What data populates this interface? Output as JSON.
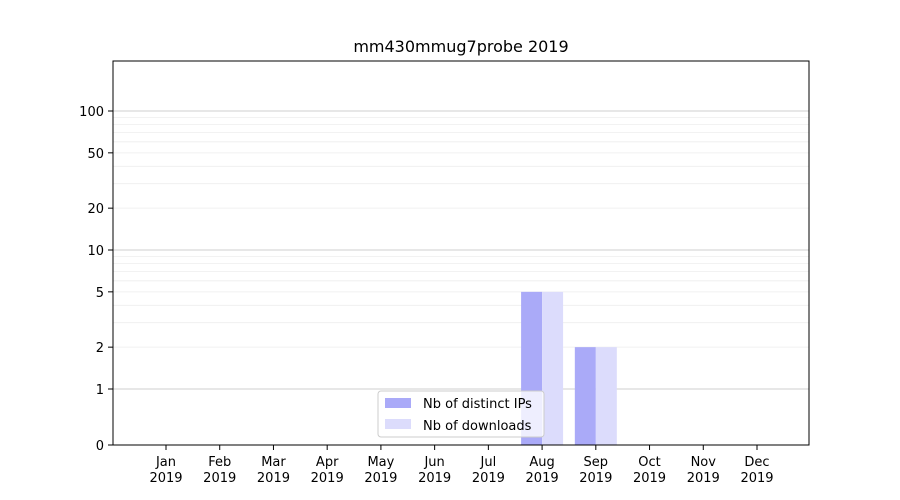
{
  "chart_data": {
    "type": "bar",
    "title": "mm430mmug7probe 2019",
    "xlabel": "",
    "ylabel": "",
    "y_scale": "symlog",
    "ylim": [
      0,
      110
    ],
    "y_ticks": [
      0,
      1,
      2,
      5,
      10,
      20,
      50,
      100
    ],
    "grid": true,
    "legend_position": "lower-center",
    "categories": [
      [
        "Jan",
        "2019"
      ],
      [
        "Feb",
        "2019"
      ],
      [
        "Mar",
        "2019"
      ],
      [
        "Apr",
        "2019"
      ],
      [
        "May",
        "2019"
      ],
      [
        "Jun",
        "2019"
      ],
      [
        "Jul",
        "2019"
      ],
      [
        "Aug",
        "2019"
      ],
      [
        "Sep",
        "2019"
      ],
      [
        "Oct",
        "2019"
      ],
      [
        "Nov",
        "2019"
      ],
      [
        "Dec",
        "2019"
      ]
    ],
    "series": [
      {
        "name": "Nb of distinct IPs",
        "color": "#aaaaf8",
        "values": [
          0,
          0,
          0,
          0,
          0,
          0,
          0,
          5,
          2,
          0,
          0,
          0
        ]
      },
      {
        "name": "Nb of downloads",
        "color": "#dcdcfc",
        "values": [
          0,
          0,
          0,
          0,
          0,
          0,
          0,
          5,
          2,
          0,
          0,
          0
        ]
      }
    ]
  }
}
